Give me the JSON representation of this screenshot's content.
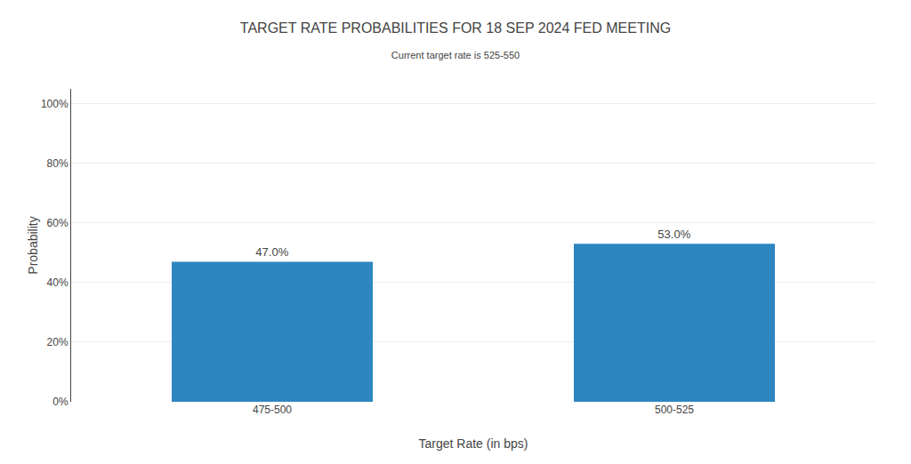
{
  "chart_data": {
    "type": "bar",
    "title": "TARGET RATE PROBABILITIES FOR 18 SEP 2024 FED MEETING",
    "subtitle": "Current target rate is 525-550",
    "xlabel": "Target Rate (in bps)",
    "ylabel": "Probability",
    "categories": [
      "475-500",
      "500-525"
    ],
    "values": [
      47.0,
      53.0
    ],
    "value_labels": [
      "47.0%",
      "53.0%"
    ],
    "color": "#2e86c1",
    "ylim": [
      0,
      105
    ],
    "yticks": [
      {
        "value": 0,
        "label": "0%"
      },
      {
        "value": 20,
        "label": "20%"
      },
      {
        "value": 40,
        "label": "40%"
      },
      {
        "value": 60,
        "label": "60%"
      },
      {
        "value": 80,
        "label": "80%"
      },
      {
        "value": 100,
        "label": "100%"
      }
    ],
    "grid": true,
    "data_labels": true
  }
}
